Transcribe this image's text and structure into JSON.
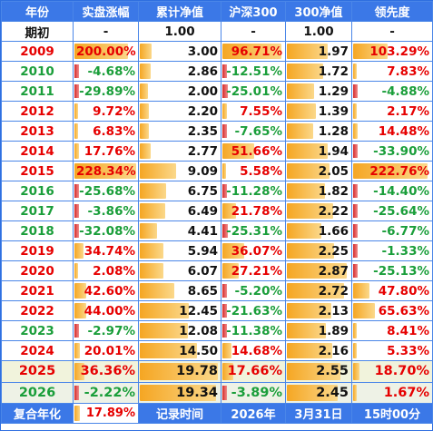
{
  "headers": [
    "年份",
    "实盘涨幅",
    "累计净值",
    "沪深300",
    "300净值",
    "领先度"
  ],
  "init_row": {
    "year": "期初",
    "gain": "-",
    "nav": "1.00",
    "hs300": "-",
    "hs_nav": "1.00",
    "lead": "-"
  },
  "rows": [
    {
      "year": "2009",
      "yc": "red",
      "gain": "200.00%",
      "gc": "red",
      "gv": 200.0,
      "nav": "3.00",
      "navv": 3.0,
      "hs300": "96.71%",
      "hc": "red",
      "hv": 96.71,
      "hs_nav": "1.97",
      "hnv": 1.97,
      "lead": "103.29%",
      "lc": "red",
      "lv": 103.29
    },
    {
      "year": "2010",
      "yc": "grn",
      "gain": "-4.68%",
      "gc": "grn",
      "gv": -4.68,
      "nav": "2.86",
      "navv": 2.86,
      "hs300": "-12.51%",
      "hc": "grn",
      "hv": -12.51,
      "hs_nav": "1.72",
      "hnv": 1.72,
      "lead": "7.83%",
      "lc": "red",
      "lv": 7.83
    },
    {
      "year": "2011",
      "yc": "grn",
      "gain": "-29.89%",
      "gc": "grn",
      "gv": -29.89,
      "nav": "2.00",
      "navv": 2.0,
      "hs300": "-25.01%",
      "hc": "grn",
      "hv": -25.01,
      "hs_nav": "1.29",
      "hnv": 1.29,
      "lead": "-4.88%",
      "lc": "grn",
      "lv": -4.88
    },
    {
      "year": "2012",
      "yc": "red",
      "gain": "9.72%",
      "gc": "red",
      "gv": 9.72,
      "nav": "2.20",
      "navv": 2.2,
      "hs300": "7.55%",
      "hc": "red",
      "hv": 7.55,
      "hs_nav": "1.39",
      "hnv": 1.39,
      "lead": "2.17%",
      "lc": "red",
      "lv": 2.17
    },
    {
      "year": "2013",
      "yc": "red",
      "gain": "6.83%",
      "gc": "red",
      "gv": 6.83,
      "nav": "2.35",
      "navv": 2.35,
      "hs300": "-7.65%",
      "hc": "grn",
      "hv": -7.65,
      "hs_nav": "1.28",
      "hnv": 1.28,
      "lead": "14.48%",
      "lc": "red",
      "lv": 14.48
    },
    {
      "year": "2014",
      "yc": "red",
      "gain": "17.76%",
      "gc": "red",
      "gv": 17.76,
      "nav": "2.77",
      "navv": 2.77,
      "hs300": "51.66%",
      "hc": "red",
      "hv": 51.66,
      "hs_nav": "1.94",
      "hnv": 1.94,
      "lead": "-33.90%",
      "lc": "grn",
      "lv": -33.9
    },
    {
      "year": "2015",
      "yc": "red",
      "gain": "228.34%",
      "gc": "red",
      "gv": 228.34,
      "nav": "9.09",
      "navv": 9.09,
      "hs300": "5.58%",
      "hc": "red",
      "hv": 5.58,
      "hs_nav": "2.05",
      "hnv": 2.05,
      "lead": "222.76%",
      "lc": "red",
      "lv": 222.76
    },
    {
      "year": "2016",
      "yc": "grn",
      "gain": "-25.68%",
      "gc": "grn",
      "gv": -25.68,
      "nav": "6.75",
      "navv": 6.75,
      "hs300": "-11.28%",
      "hc": "grn",
      "hv": -11.28,
      "hs_nav": "1.82",
      "hnv": 1.82,
      "lead": "-14.40%",
      "lc": "grn",
      "lv": -14.4
    },
    {
      "year": "2017",
      "yc": "grn",
      "gain": "-3.86%",
      "gc": "grn",
      "gv": -3.86,
      "nav": "6.49",
      "navv": 6.49,
      "hs300": "21.78%",
      "hc": "red",
      "hv": 21.78,
      "hs_nav": "2.22",
      "hnv": 2.22,
      "lead": "-25.64%",
      "lc": "grn",
      "lv": -25.64
    },
    {
      "year": "2018",
      "yc": "grn",
      "gain": "-32.08%",
      "gc": "grn",
      "gv": -32.08,
      "nav": "4.41",
      "navv": 4.41,
      "hs300": "-25.31%",
      "hc": "grn",
      "hv": -25.31,
      "hs_nav": "1.66",
      "hnv": 1.66,
      "lead": "-6.77%",
      "lc": "grn",
      "lv": -6.77
    },
    {
      "year": "2019",
      "yc": "red",
      "gain": "34.74%",
      "gc": "red",
      "gv": 34.74,
      "nav": "5.94",
      "navv": 5.94,
      "hs300": "36.07%",
      "hc": "red",
      "hv": 36.07,
      "hs_nav": "2.25",
      "hnv": 2.25,
      "lead": "-1.33%",
      "lc": "grn",
      "lv": -1.33
    },
    {
      "year": "2020",
      "yc": "red",
      "gain": "2.08%",
      "gc": "red",
      "gv": 2.08,
      "nav": "6.07",
      "navv": 6.07,
      "hs300": "27.21%",
      "hc": "red",
      "hv": 27.21,
      "hs_nav": "2.87",
      "hnv": 2.87,
      "lead": "-25.13%",
      "lc": "grn",
      "lv": -25.13
    },
    {
      "year": "2021",
      "yc": "red",
      "gain": "42.60%",
      "gc": "red",
      "gv": 42.6,
      "nav": "8.65",
      "navv": 8.65,
      "hs300": "-5.20%",
      "hc": "grn",
      "hv": -5.2,
      "hs_nav": "2.72",
      "hnv": 2.72,
      "lead": "47.80%",
      "lc": "red",
      "lv": 47.8
    },
    {
      "year": "2022",
      "yc": "red",
      "gain": "44.00%",
      "gc": "red",
      "gv": 44.0,
      "nav": "12.45",
      "navv": 12.45,
      "hs300": "-21.63%",
      "hc": "grn",
      "hv": -21.63,
      "hs_nav": "2.13",
      "hnv": 2.13,
      "lead": "65.63%",
      "lc": "red",
      "lv": 65.63
    },
    {
      "year": "2023",
      "yc": "grn",
      "gain": "-2.97%",
      "gc": "grn",
      "gv": -2.97,
      "nav": "12.08",
      "navv": 12.08,
      "hs300": "-11.38%",
      "hc": "grn",
      "hv": -11.38,
      "hs_nav": "1.89",
      "hnv": 1.89,
      "lead": "8.41%",
      "lc": "red",
      "lv": 8.41
    },
    {
      "year": "2024",
      "yc": "red",
      "gain": "20.01%",
      "gc": "red",
      "gv": 20.01,
      "nav": "14.50",
      "navv": 14.5,
      "hs300": "14.68%",
      "hc": "red",
      "hv": 14.68,
      "hs_nav": "2.16",
      "hnv": 2.16,
      "lead": "5.33%",
      "lc": "red",
      "lv": 5.33
    },
    {
      "year": "2025",
      "yc": "red",
      "gain": "36.36%",
      "gc": "red",
      "gv": 36.36,
      "nav": "19.78",
      "navv": 19.78,
      "hs300": "17.66%",
      "hc": "red",
      "hv": 17.66,
      "hs_nav": "2.55",
      "hnv": 2.55,
      "lead": "18.70%",
      "lc": "red",
      "lv": 18.7,
      "hl": "hl"
    },
    {
      "year": "2026",
      "yc": "grn",
      "gain": "-2.22%",
      "gc": "grn",
      "gv": -2.22,
      "nav": "19.34",
      "navv": 19.34,
      "hs300": "-3.89%",
      "hc": "grn",
      "hv": -3.89,
      "hs_nav": "2.45",
      "hnv": 2.45,
      "lead": "1.67%",
      "lc": "red",
      "lv": 1.67,
      "hl": "hl2"
    }
  ],
  "footer": {
    "label": "复合年化",
    "value": "17.89%",
    "record_label": "记录时间",
    "year": "2026年",
    "date": "3月31日",
    "time": "15时00分"
  },
  "colors": {
    "header_bg": "#3b78e7",
    "grid": "#4a86e8",
    "up": "#e60000",
    "down": "#1a9e3a",
    "bar": "#f5a623"
  }
}
